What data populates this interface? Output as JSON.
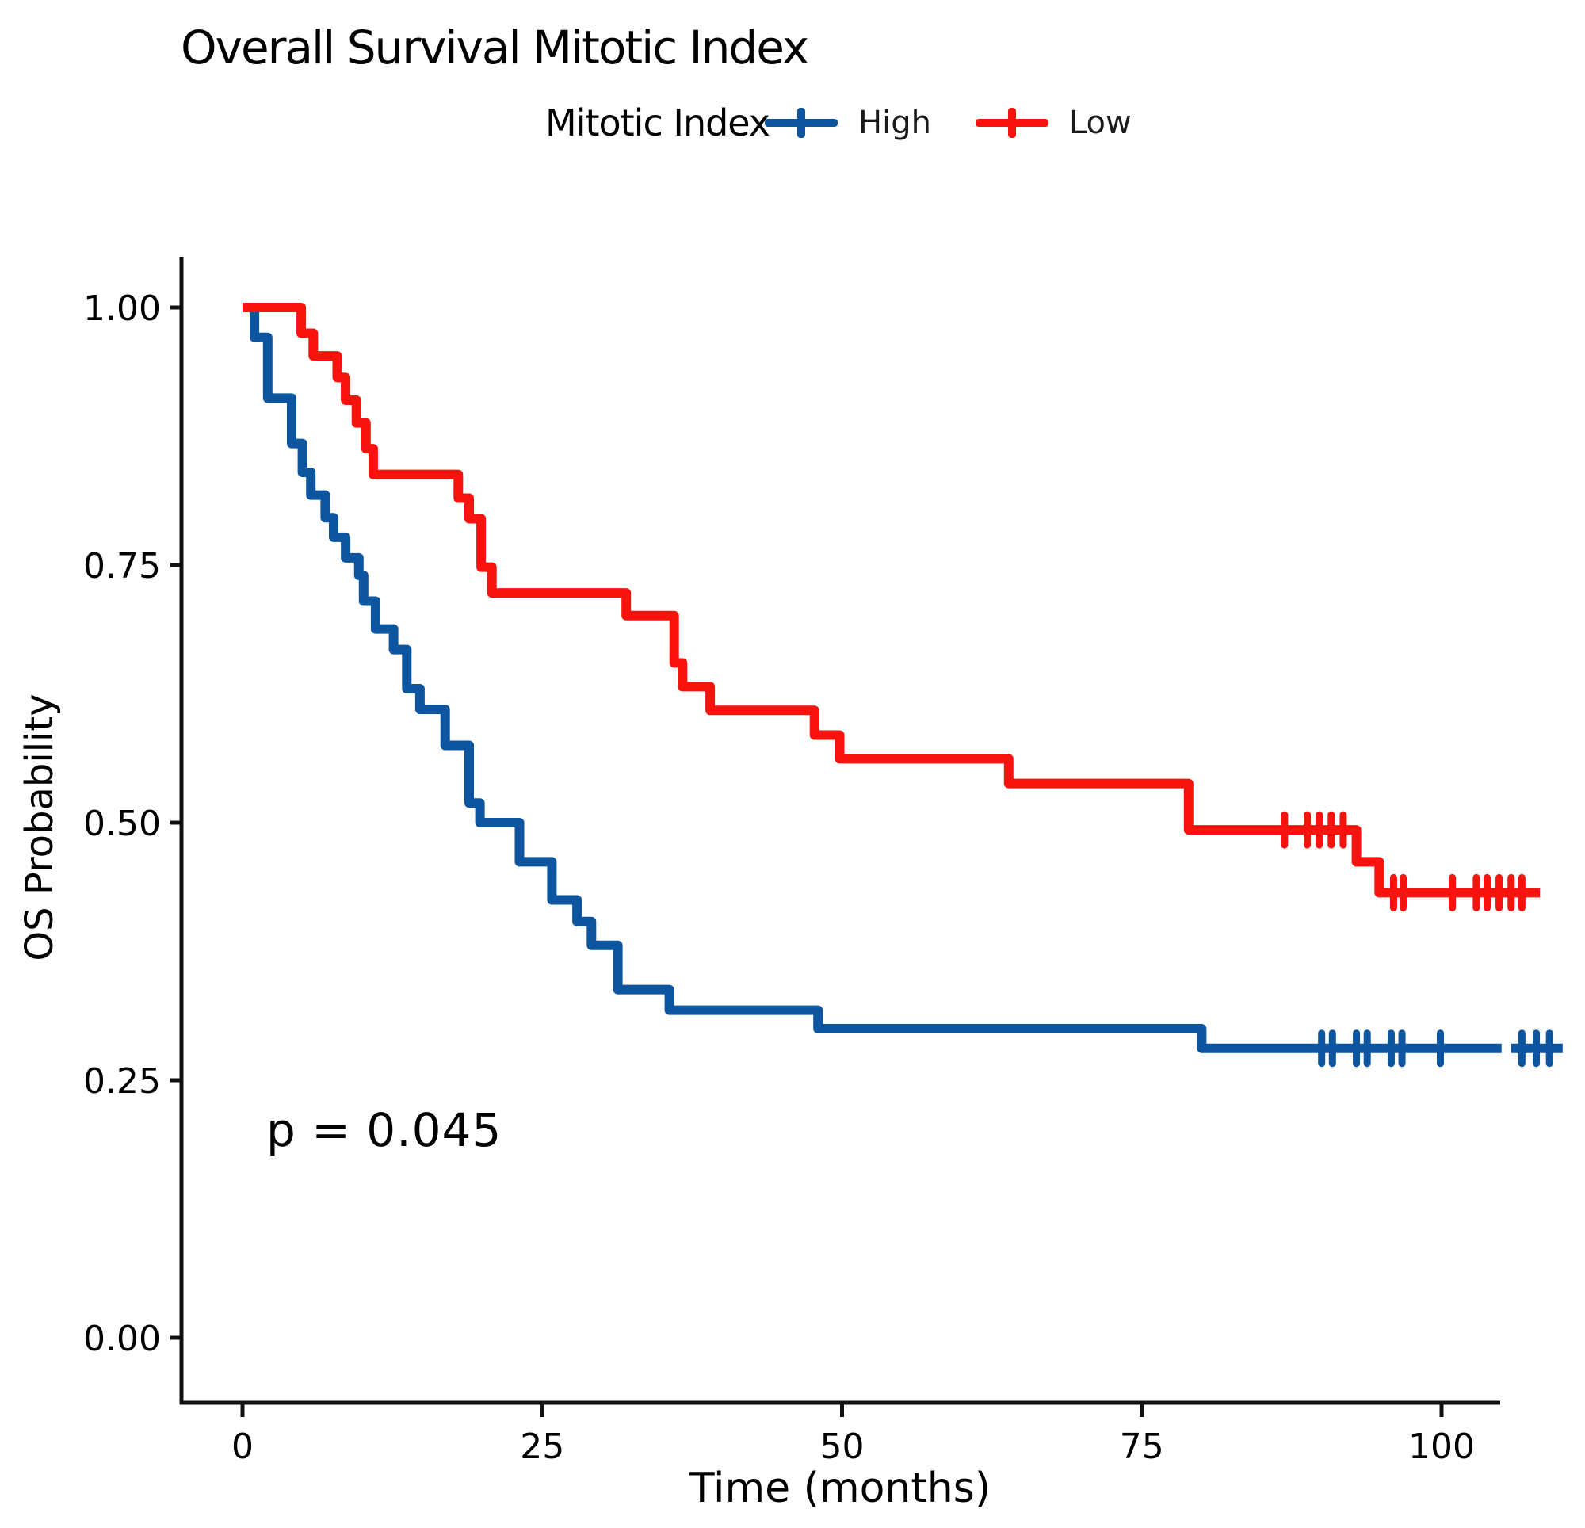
{
  "page": {
    "background": "#ffffff",
    "text_color": "#000000"
  },
  "chart_data": {
    "type": "line",
    "subtype": "kaplan-meier-step",
    "title": "Overall Survival Mitotic Index",
    "xlabel": "Time (months)",
    "ylabel": "OS Probability",
    "pvalue": "p = 0.045",
    "grid": false,
    "xlim": [
      0,
      100
    ],
    "ylim": [
      0.0,
      1.0
    ],
    "xticks": [
      {
        "v": 0,
        "label": "0"
      },
      {
        "v": 25,
        "label": "25"
      },
      {
        "v": 50,
        "label": "50"
      },
      {
        "v": 75,
        "label": "75"
      },
      {
        "v": 100,
        "label": "100"
      }
    ],
    "yticks": [
      {
        "v": 1.0,
        "label": "1.00"
      },
      {
        "v": 0.75,
        "label": "0.75"
      },
      {
        "v": 0.5,
        "label": "0.50"
      },
      {
        "v": 0.25,
        "label": "0.25"
      },
      {
        "v": 0.0,
        "label": "0.00"
      }
    ],
    "legend": {
      "title": "Mitotic Index",
      "position": "top",
      "entries": [
        {
          "label": "High",
          "color": "#0d559e"
        },
        {
          "label": "Low",
          "color": "#f8130f"
        }
      ]
    },
    "axis_color": "#111111",
    "series": [
      {
        "name": "High",
        "color": "#0d559e",
        "segments": [
          {
            "start_t": 0,
            "start_p": 1.0,
            "end_t": 105.0,
            "events": [
              [
                1.0,
                0.971
              ],
              [
                2.1,
                0.912
              ],
              [
                4.1,
                0.868
              ],
              [
                5.0,
                0.84
              ],
              [
                5.7,
                0.818
              ],
              [
                6.9,
                0.796
              ],
              [
                7.6,
                0.777
              ],
              [
                8.6,
                0.757
              ],
              [
                9.7,
                0.74
              ],
              [
                10.1,
                0.715
              ],
              [
                11.1,
                0.688
              ],
              [
                12.6,
                0.668
              ],
              [
                13.7,
                0.63
              ],
              [
                14.8,
                0.61
              ],
              [
                16.9,
                0.575
              ],
              [
                18.9,
                0.519
              ],
              [
                19.8,
                0.5
              ],
              [
                23.1,
                0.462
              ],
              [
                25.8,
                0.425
              ],
              [
                27.9,
                0.404
              ],
              [
                29.1,
                0.381
              ],
              [
                31.3,
                0.338
              ],
              [
                35.6,
                0.318
              ],
              [
                48.0,
                0.3
              ],
              [
                80.0,
                0.281
              ]
            ]
          },
          {
            "start_t": 105.8,
            "start_p": 0.281,
            "end_t": 110.1,
            "events": []
          }
        ],
        "censors": [
          [
            90.0,
            0.281
          ],
          [
            90.9,
            0.281
          ],
          [
            92.9,
            0.281
          ],
          [
            93.8,
            0.281
          ],
          [
            95.8,
            0.281
          ],
          [
            96.7,
            0.281
          ],
          [
            99.9,
            0.281
          ],
          [
            106.7,
            0.281
          ],
          [
            107.9,
            0.281
          ],
          [
            109.0,
            0.281
          ]
        ]
      },
      {
        "name": "Low",
        "color": "#f8130f",
        "segments": [
          {
            "start_t": 0,
            "start_p": 1.0,
            "end_t": 108.2,
            "events": [
              [
                4.9,
                0.975
              ],
              [
                5.9,
                0.953
              ],
              [
                7.9,
                0.932
              ],
              [
                8.6,
                0.91
              ],
              [
                9.5,
                0.888
              ],
              [
                10.3,
                0.863
              ],
              [
                10.9,
                0.838
              ],
              [
                18.0,
                0.815
              ],
              [
                18.9,
                0.795
              ],
              [
                19.9,
                0.748
              ],
              [
                20.8,
                0.723
              ],
              [
                32.0,
                0.701
              ],
              [
                36.0,
                0.655
              ],
              [
                36.7,
                0.632
              ],
              [
                39.0,
                0.609
              ],
              [
                47.7,
                0.585
              ],
              [
                49.8,
                0.562
              ],
              [
                63.9,
                0.538
              ],
              [
                78.9,
                0.493
              ],
              [
                92.9,
                0.462
              ],
              [
                94.8,
                0.432
              ]
            ]
          }
        ],
        "censors": [
          [
            86.9,
            0.493
          ],
          [
            88.8,
            0.493
          ],
          [
            89.8,
            0.493
          ],
          [
            90.8,
            0.493
          ],
          [
            91.8,
            0.493
          ],
          [
            96.0,
            0.432
          ],
          [
            96.8,
            0.432
          ],
          [
            100.9,
            0.432
          ],
          [
            102.9,
            0.432
          ],
          [
            103.8,
            0.432
          ],
          [
            104.8,
            0.432
          ],
          [
            105.8,
            0.432
          ],
          [
            106.7,
            0.432
          ]
        ]
      }
    ]
  }
}
